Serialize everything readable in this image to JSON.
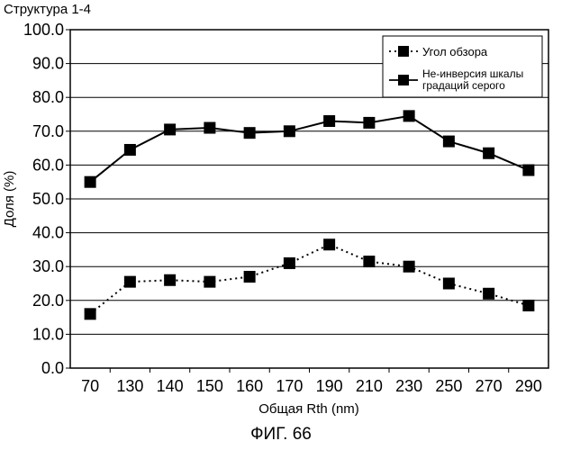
{
  "header_note": "Структура 1-4",
  "figure_caption": "ФИГ. 66",
  "chart_data": {
    "type": "line",
    "categories": [
      "70",
      "130",
      "140",
      "150",
      "160",
      "170",
      "190",
      "210",
      "230",
      "250",
      "270",
      "290"
    ],
    "xlabel": "Общая Rth (nm)",
    "ylabel": "Доля (%)",
    "ylim": [
      0,
      100
    ],
    "yticks": [
      "0.0",
      "10.0",
      "20.0",
      "30.0",
      "40.0",
      "50.0",
      "60.0",
      "70.0",
      "80.0",
      "90.0",
      "100.0"
    ],
    "grid": "horizontal",
    "legend_position": "top-right",
    "series": [
      {
        "name": "Угол обзора",
        "line_style": "dotted",
        "marker": "square",
        "values": [
          16,
          25.5,
          26,
          25.5,
          27,
          31,
          36.5,
          31.5,
          30,
          25,
          22,
          18.5
        ]
      },
      {
        "name": "Не-инверсия шкалы градаций серого",
        "line_style": "solid",
        "marker": "square",
        "values": [
          55,
          64.5,
          70.5,
          71,
          69.5,
          70,
          73,
          72.5,
          74.5,
          67,
          63.5,
          58.5
        ]
      }
    ],
    "legend_lines": [
      [
        "Угол обзора"
      ],
      [
        "Не-инверсия шкалы",
        "градаций серого"
      ]
    ]
  }
}
